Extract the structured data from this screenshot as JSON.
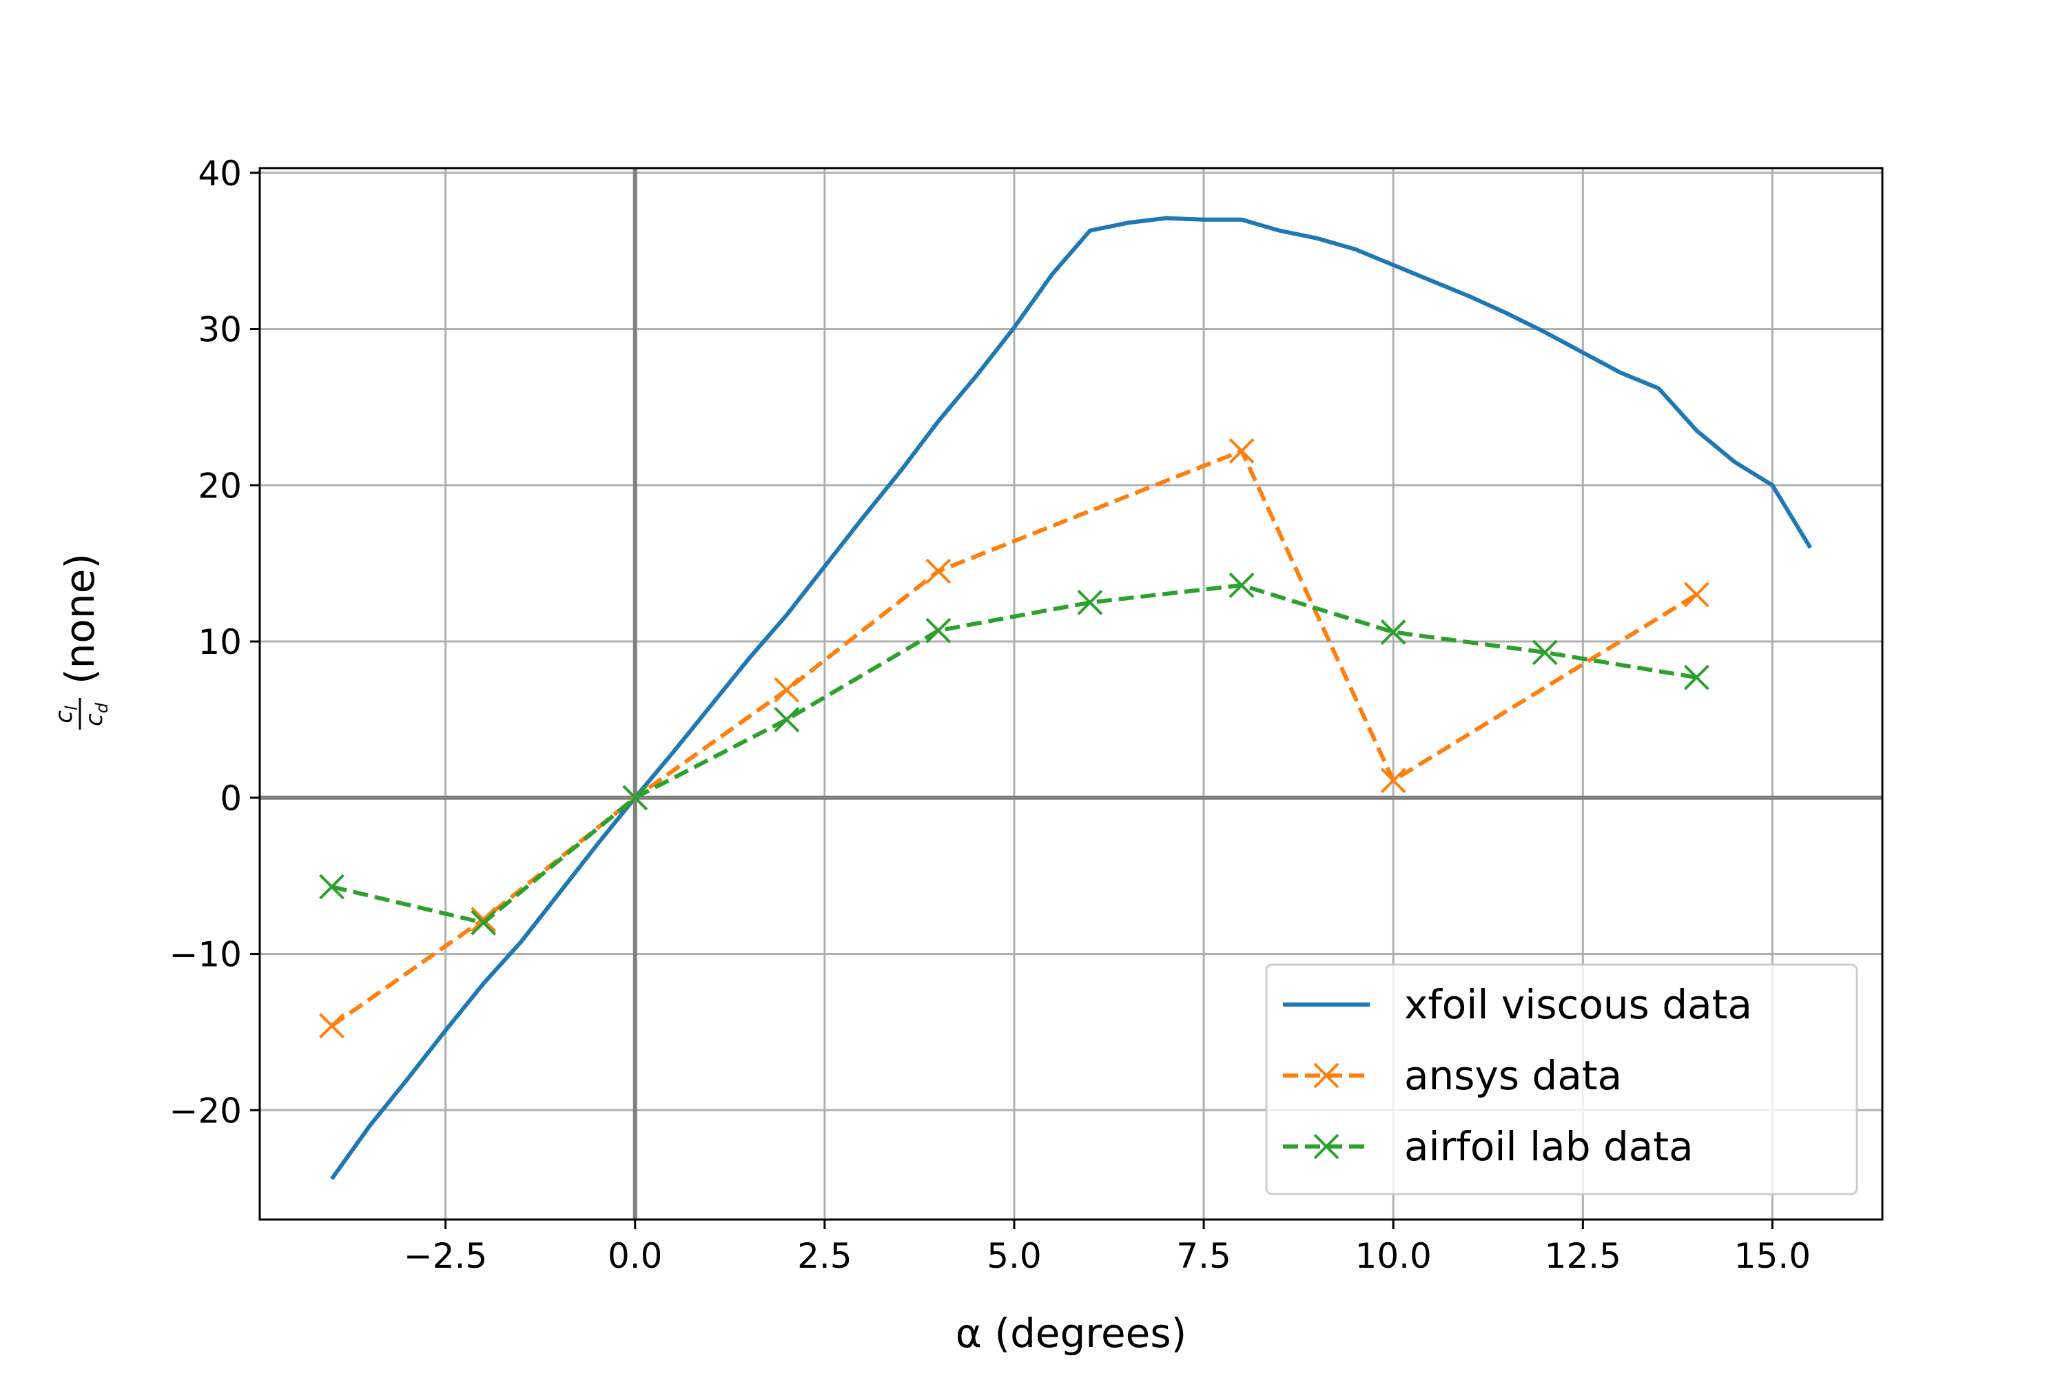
{
  "chart_data": {
    "type": "line",
    "xlabel": "α (degrees)",
    "ylabel": {
      "numerator": "c",
      "numerator_sub": "l",
      "denominator": "c",
      "denominator_sub": "d",
      "suffix": "(none)"
    },
    "xlim": [
      -4.95,
      16.45
    ],
    "ylim": [
      -27.0,
      40.3
    ],
    "xticks": [
      -2.5,
      0.0,
      2.5,
      5.0,
      7.5,
      10.0,
      12.5,
      15.0
    ],
    "xtick_labels": [
      "−2.5",
      "0.0",
      "2.5",
      "5.0",
      "7.5",
      "10.0",
      "12.5",
      "15.0"
    ],
    "yticks": [
      -20,
      -10,
      0,
      10,
      20,
      30,
      40
    ],
    "ytick_labels": [
      "−20",
      "−10",
      "0",
      "10",
      "20",
      "30",
      "40"
    ],
    "grid": true,
    "reference_lines": {
      "x0": true,
      "y0": true
    },
    "legend": {
      "placement": "lower-right"
    },
    "series": [
      {
        "name": "xfoil viscous data",
        "style": "solid",
        "marker": "none",
        "color": "#1f77b4",
        "x": [
          -4.0,
          -3.5,
          -3.0,
          -2.5,
          -2.0,
          -1.5,
          -1.0,
          -0.5,
          0.0,
          0.5,
          1.0,
          1.5,
          2.0,
          2.5,
          3.0,
          3.5,
          4.0,
          4.5,
          5.0,
          5.5,
          6.0,
          6.5,
          7.0,
          7.5,
          8.0,
          8.5,
          9.0,
          9.5,
          10.0,
          10.5,
          11.0,
          11.5,
          12.0,
          12.5,
          13.0,
          13.5,
          14.0,
          14.5,
          15.0,
          15.5
        ],
        "y": [
          -24.4,
          -21.0,
          -18.0,
          -14.9,
          -11.9,
          -9.2,
          -6.1,
          -3.0,
          0.0,
          2.9,
          5.9,
          8.9,
          11.7,
          14.8,
          17.9,
          20.9,
          24.1,
          27.0,
          30.1,
          33.5,
          36.3,
          36.8,
          37.1,
          37.0,
          37.0,
          36.3,
          35.8,
          35.1,
          34.1,
          33.1,
          32.1,
          31.0,
          29.8,
          28.5,
          27.2,
          26.2,
          23.5,
          21.5,
          20.0,
          16.0
        ]
      },
      {
        "name": "ansys data",
        "style": "dashed",
        "marker": "x",
        "color": "#ff7f0e",
        "x": [
          -4,
          -2,
          0,
          2,
          4,
          8,
          10,
          14
        ],
        "y": [
          -14.6,
          -7.8,
          0.0,
          6.9,
          14.5,
          22.2,
          1.1,
          13.0
        ]
      },
      {
        "name": "airfoil lab data",
        "style": "dashed",
        "marker": "x",
        "color": "#2ca02c",
        "x": [
          -4,
          -2,
          0,
          2,
          4,
          6,
          8,
          10,
          12,
          14
        ],
        "y": [
          -5.7,
          -8.0,
          0.0,
          5.0,
          10.7,
          12.5,
          13.6,
          10.6,
          9.3,
          7.7
        ]
      }
    ]
  }
}
